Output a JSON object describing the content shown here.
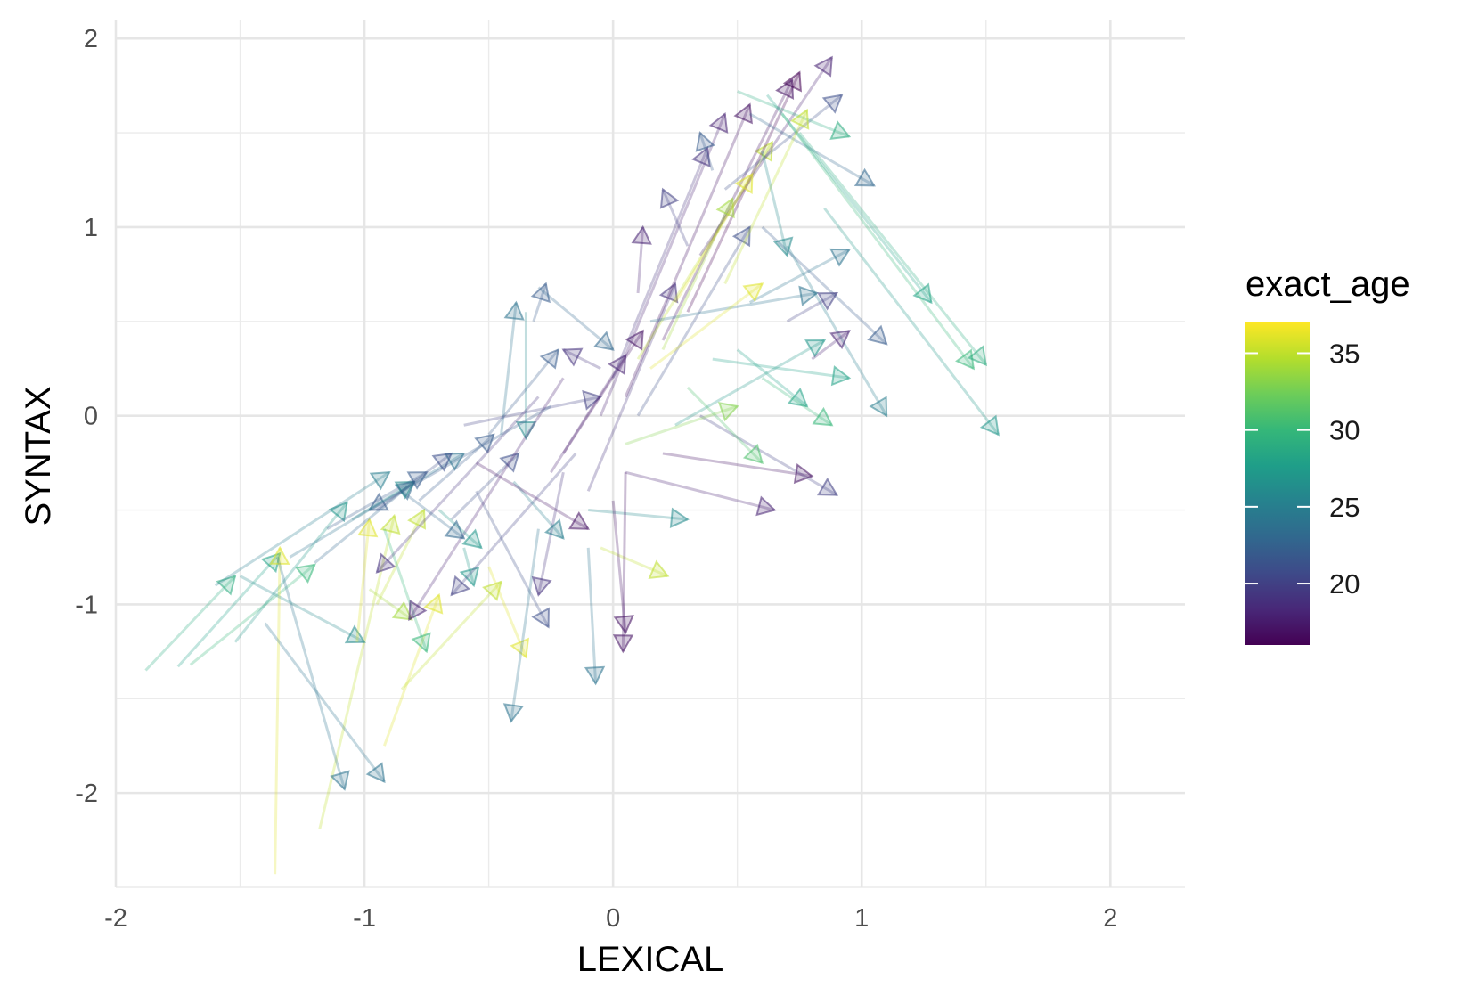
{
  "chart_data": {
    "type": "scatter",
    "subtype": "arrow-trajectories",
    "xlabel": "LEXICAL",
    "ylabel": "SYNTAX",
    "xlim": [
      -2.0,
      2.3
    ],
    "ylim": [
      -2.5,
      2.1
    ],
    "x_ticks": [
      -2,
      -1,
      0,
      1,
      2
    ],
    "x_tick_labels": [
      "-2",
      "-1",
      "0",
      "1",
      "2"
    ],
    "y_ticks": [
      -2,
      -1,
      0,
      1,
      2
    ],
    "y_tick_labels": [
      "-2",
      "-1",
      "0",
      "1",
      "2"
    ],
    "grid": true,
    "color_variable": "exact_age",
    "color_range": [
      16,
      37
    ],
    "legend": {
      "title": "exact_age",
      "position": "right",
      "ticks": [
        20,
        25,
        30,
        35
      ],
      "tick_labels": [
        "20",
        "25",
        "30",
        "35"
      ],
      "colors": [
        "#440154",
        "#482878",
        "#3E4A89",
        "#31688E",
        "#26828E",
        "#1F9E89",
        "#35B779",
        "#6DCD59",
        "#B4DE2C",
        "#FDE725"
      ]
    },
    "segments": [
      {
        "x0": -1.88,
        "y0": -1.35,
        "x1": -1.52,
        "y1": -0.85,
        "age": 29
      },
      {
        "x0": -1.75,
        "y0": -1.33,
        "x1": -1.34,
        "y1": -0.73,
        "age": 28
      },
      {
        "x0": -1.7,
        "y0": -1.32,
        "x1": -1.2,
        "y1": -0.79,
        "age": 30
      },
      {
        "x0": -1.52,
        "y0": -1.2,
        "x1": -1.07,
        "y1": -0.46,
        "age": 27
      },
      {
        "x0": -1.36,
        "y0": -2.43,
        "x1": -1.34,
        "y1": -0.7,
        "age": 36
      },
      {
        "x0": -1.18,
        "y0": -2.19,
        "x1": -0.88,
        "y1": -0.53,
        "age": 35
      },
      {
        "x0": -1.4,
        "y0": -1.1,
        "x1": -0.92,
        "y1": -1.94,
        "age": 24
      },
      {
        "x0": -1.35,
        "y0": -0.75,
        "x1": -1.08,
        "y1": -1.98,
        "age": 24
      },
      {
        "x0": -1.5,
        "y0": -0.85,
        "x1": -1.0,
        "y1": -1.2,
        "age": 26
      },
      {
        "x0": -1.03,
        "y0": -1.2,
        "x1": -0.98,
        "y1": -0.55,
        "age": 36
      },
      {
        "x0": -0.98,
        "y0": -0.92,
        "x1": -0.81,
        "y1": -1.08,
        "age": 34
      },
      {
        "x0": -0.95,
        "y0": -1.0,
        "x1": -0.76,
        "y1": -0.5,
        "age": 35
      },
      {
        "x0": -1.2,
        "y0": -0.78,
        "x1": -0.8,
        "y1": -0.35,
        "age": 23
      },
      {
        "x0": -0.92,
        "y0": -1.75,
        "x1": -0.7,
        "y1": -0.95,
        "age": 36
      },
      {
        "x0": -0.85,
        "y0": -1.45,
        "x1": -0.45,
        "y1": -0.88,
        "age": 35
      },
      {
        "x0": -0.92,
        "y0": -0.6,
        "x1": -0.75,
        "y1": -1.25,
        "age": 30
      },
      {
        "x0": -0.78,
        "y0": -0.45,
        "x1": -0.48,
        "y1": -0.1,
        "age": 22
      },
      {
        "x0": -0.65,
        "y0": -0.55,
        "x1": -0.38,
        "y1": -0.2,
        "age": 21
      },
      {
        "x0": -0.6,
        "y0": -0.7,
        "x1": -0.56,
        "y1": -0.9,
        "age": 27
      },
      {
        "x0": -0.55,
        "y0": -0.4,
        "x1": -0.26,
        "y1": -1.12,
        "age": 21
      },
      {
        "x0": -0.5,
        "y0": -0.8,
        "x1": -0.35,
        "y1": -1.28,
        "age": 36
      },
      {
        "x0": -0.3,
        "y0": -0.6,
        "x1": -0.41,
        "y1": -1.62,
        "age": 24
      },
      {
        "x0": -0.45,
        "y0": -0.1,
        "x1": -0.39,
        "y1": 0.6,
        "age": 24
      },
      {
        "x0": -0.35,
        "y0": 0.55,
        "x1": -0.35,
        "y1": -0.12,
        "age": 26
      },
      {
        "x0": -0.32,
        "y0": 0.5,
        "x1": -0.27,
        "y1": 0.7,
        "age": 22
      },
      {
        "x0": -0.3,
        "y0": 0.68,
        "x1": 0.0,
        "y1": 0.35,
        "age": 23
      },
      {
        "x0": -0.5,
        "y0": -0.1,
        "x1": -0.22,
        "y1": 0.35,
        "age": 22
      },
      {
        "x0": -0.6,
        "y0": -0.05,
        "x1": -0.05,
        "y1": 0.1,
        "age": 20
      },
      {
        "x0": -0.25,
        "y0": -0.3,
        "x1": 0.05,
        "y1": 0.32,
        "age": 18
      },
      {
        "x0": -0.2,
        "y0": -0.2,
        "x1": 0.12,
        "y1": 0.45,
        "age": 17
      },
      {
        "x0": -0.1,
        "y0": -0.4,
        "x1": 0.25,
        "y1": 0.7,
        "age": 19
      },
      {
        "x0": -0.05,
        "y0": 0.0,
        "x1": 0.45,
        "y1": 1.6,
        "age": 18
      },
      {
        "x0": 0.05,
        "y0": 0.1,
        "x1": 0.55,
        "y1": 1.65,
        "age": 17
      },
      {
        "x0": 0.1,
        "y0": 0.3,
        "x1": 0.64,
        "y1": 1.45,
        "age": 35
      },
      {
        "x0": 0.2,
        "y0": 0.4,
        "x1": 0.72,
        "y1": 1.78,
        "age": 17
      },
      {
        "x0": 0.3,
        "y0": 0.55,
        "x1": 0.75,
        "y1": 1.82,
        "age": 16
      },
      {
        "x0": 0.35,
        "y0": 0.85,
        "x1": 0.88,
        "y1": 1.9,
        "age": 18
      },
      {
        "x0": 0.45,
        "y0": 1.2,
        "x1": 0.92,
        "y1": 1.7,
        "age": 21
      },
      {
        "x0": 0.5,
        "y0": 1.72,
        "x1": 0.95,
        "y1": 1.48,
        "age": 29
      },
      {
        "x0": 0.55,
        "y0": 1.6,
        "x1": 1.05,
        "y1": 1.22,
        "age": 23
      },
      {
        "x0": 0.62,
        "y0": 1.7,
        "x1": 1.28,
        "y1": 0.6,
        "age": 28
      },
      {
        "x0": 0.68,
        "y0": 1.6,
        "x1": 1.45,
        "y1": 0.25,
        "age": 30
      },
      {
        "x0": 0.75,
        "y0": 1.5,
        "x1": 1.5,
        "y1": 0.27,
        "age": 29
      },
      {
        "x0": 0.85,
        "y0": 1.1,
        "x1": 1.55,
        "y1": -0.1,
        "age": 27
      },
      {
        "x0": 0.6,
        "y0": 1.0,
        "x1": 1.1,
        "y1": 0.38,
        "age": 22
      },
      {
        "x0": 0.7,
        "y0": 0.9,
        "x1": 1.1,
        "y1": 0.0,
        "age": 25
      },
      {
        "x0": 0.55,
        "y0": 0.6,
        "x1": 0.95,
        "y1": 0.88,
        "age": 24
      },
      {
        "x0": 0.4,
        "y0": 0.3,
        "x1": 0.95,
        "y1": 0.2,
        "age": 28
      },
      {
        "x0": 0.35,
        "y0": 0.0,
        "x1": 0.9,
        "y1": -0.42,
        "age": 20
      },
      {
        "x0": 0.2,
        "y0": -0.2,
        "x1": 0.8,
        "y1": -0.32,
        "age": 17
      },
      {
        "x0": 0.05,
        "y0": -0.3,
        "x1": 0.65,
        "y1": -0.5,
        "age": 18
      },
      {
        "x0": -0.1,
        "y0": -0.5,
        "x1": 0.3,
        "y1": -0.55,
        "age": 26
      },
      {
        "x0": -0.05,
        "y0": -0.7,
        "x1": 0.22,
        "y1": -0.85,
        "age": 35
      },
      {
        "x0": 0.05,
        "y0": -0.3,
        "x1": 0.04,
        "y1": -1.25,
        "age": 17
      },
      {
        "x0": 0.0,
        "y0": -0.45,
        "x1": 0.05,
        "y1": -1.15,
        "age": 17
      },
      {
        "x0": -0.1,
        "y0": -0.7,
        "x1": -0.07,
        "y1": -1.42,
        "age": 24
      },
      {
        "x0": -0.2,
        "y0": -0.3,
        "x1": -0.3,
        "y1": -0.95,
        "age": 19
      },
      {
        "x0": -0.15,
        "y0": -0.2,
        "x1": -0.65,
        "y1": -0.95,
        "age": 20
      },
      {
        "x0": -0.3,
        "y0": 0.1,
        "x1": -0.95,
        "y1": -0.83,
        "age": 19
      },
      {
        "x0": -0.2,
        "y0": 0.2,
        "x1": -0.82,
        "y1": -1.08,
        "age": 18
      },
      {
        "x0": -0.25,
        "y0": 0.05,
        "x1": -0.98,
        "y1": -0.5,
        "age": 22
      },
      {
        "x0": 0.0,
        "y0": 0.2,
        "x1": 0.38,
        "y1": 1.42,
        "age": 19
      },
      {
        "x0": 0.1,
        "y0": 0.0,
        "x1": 0.55,
        "y1": 1.0,
        "age": 21
      },
      {
        "x0": 0.15,
        "y0": 0.5,
        "x1": 0.82,
        "y1": 0.65,
        "age": 24
      },
      {
        "x0": 0.25,
        "y0": -0.05,
        "x1": 0.85,
        "y1": 0.4,
        "age": 27
      },
      {
        "x0": 0.3,
        "y0": 0.15,
        "x1": 0.6,
        "y1": -0.25,
        "age": 31
      },
      {
        "x0": -0.4,
        "y0": -0.35,
        "x1": -0.2,
        "y1": -0.65,
        "age": 25
      },
      {
        "x0": -0.7,
        "y0": -0.5,
        "x1": -0.53,
        "y1": -0.7,
        "age": 27
      },
      {
        "x0": -1.05,
        "y0": -0.55,
        "x1": -0.8,
        "y1": -0.35,
        "age": 26
      },
      {
        "x0": -0.85,
        "y0": -0.4,
        "x1": -0.6,
        "y1": -0.65,
        "age": 23
      },
      {
        "x0": -0.55,
        "y0": -0.25,
        "x1": -0.1,
        "y1": -0.6,
        "age": 17
      },
      {
        "x0": 0.05,
        "y0": -0.15,
        "x1": 0.5,
        "y1": 0.05,
        "age": 33
      },
      {
        "x0": 0.15,
        "y0": 0.25,
        "x1": 0.6,
        "y1": 0.7,
        "age": 36
      },
      {
        "x0": 0.2,
        "y0": 0.35,
        "x1": 0.48,
        "y1": 1.15,
        "age": 34
      },
      {
        "x0": 0.25,
        "y0": 0.6,
        "x1": 0.56,
        "y1": 1.28,
        "age": 36
      },
      {
        "x0": 0.45,
        "y0": 0.7,
        "x1": 0.78,
        "y1": 1.62,
        "age": 35
      },
      {
        "x0": 0.3,
        "y0": 0.9,
        "x1": 0.2,
        "y1": 1.2,
        "age": 20
      },
      {
        "x0": 0.4,
        "y0": 1.3,
        "x1": 0.35,
        "y1": 1.5,
        "age": 22
      },
      {
        "x0": 0.6,
        "y0": 1.4,
        "x1": 0.7,
        "y1": 0.85,
        "age": 26
      },
      {
        "x0": 0.1,
        "y0": 0.65,
        "x1": 0.12,
        "y1": 1.0,
        "age": 18
      },
      {
        "x0": -0.05,
        "y0": 0.25,
        "x1": -0.2,
        "y1": 0.35,
        "age": 19
      },
      {
        "x0": 0.5,
        "y0": 0.35,
        "x1": 0.78,
        "y1": 0.05,
        "age": 28
      },
      {
        "x0": 0.6,
        "y0": 0.2,
        "x1": 0.88,
        "y1": -0.05,
        "age": 30
      },
      {
        "x0": 0.7,
        "y0": 0.5,
        "x1": 0.9,
        "y1": 0.65,
        "age": 20
      },
      {
        "x0": 0.8,
        "y0": 0.3,
        "x1": 0.95,
        "y1": 0.45,
        "age": 18
      },
      {
        "x0": -1.3,
        "y0": -0.75,
        "x1": -0.6,
        "y1": -0.2,
        "age": 24
      },
      {
        "x0": -1.6,
        "y0": -0.9,
        "x1": -0.9,
        "y1": -0.3,
        "age": 25
      },
      {
        "x0": -1.15,
        "y0": -0.6,
        "x1": -0.75,
        "y1": -0.3,
        "age": 22
      },
      {
        "x0": -0.95,
        "y0": -0.5,
        "x1": -0.65,
        "y1": -0.2,
        "age": 21
      }
    ]
  }
}
